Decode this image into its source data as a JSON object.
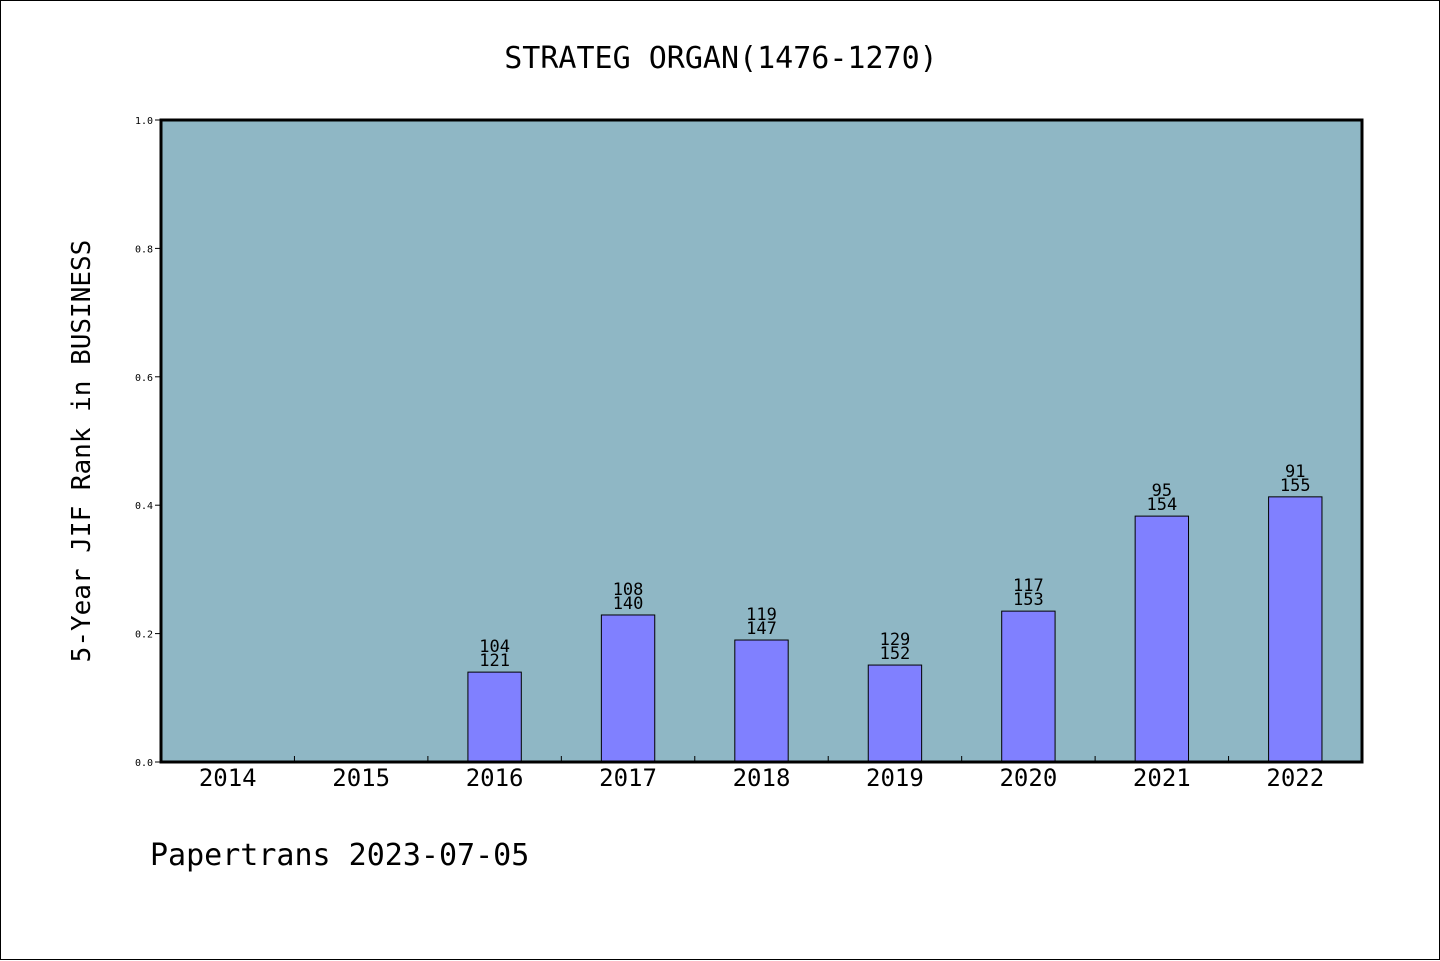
{
  "chart_data": {
    "type": "bar",
    "title": "STRATEG ORGAN(1476-1270)",
    "ylabel": "5-Year JIF Rank in BUSINESS",
    "xlabel": "",
    "categories": [
      "2014",
      "2015",
      "2016",
      "2017",
      "2018",
      "2019",
      "2020",
      "2021",
      "2022"
    ],
    "values": [
      null,
      null,
      0.14,
      0.229,
      0.19,
      0.151,
      0.235,
      0.383,
      0.413
    ],
    "rank": [
      null,
      null,
      "104",
      "108",
      "119",
      "129",
      "117",
      "95",
      "91"
    ],
    "total": [
      null,
      null,
      "121",
      "140",
      "147",
      "152",
      "153",
      "154",
      "155"
    ],
    "ylim": [
      0,
      1.0
    ],
    "yticks": [
      "0.0",
      "0.2",
      "0.4",
      "0.6",
      "0.8",
      "1.0"
    ],
    "grid": false,
    "colors": {
      "plot_background": "#8fb7c5",
      "bar": "#8080ff",
      "frame": "#000000"
    }
  },
  "footer": {
    "text": "Papertrans 2023-07-05"
  }
}
